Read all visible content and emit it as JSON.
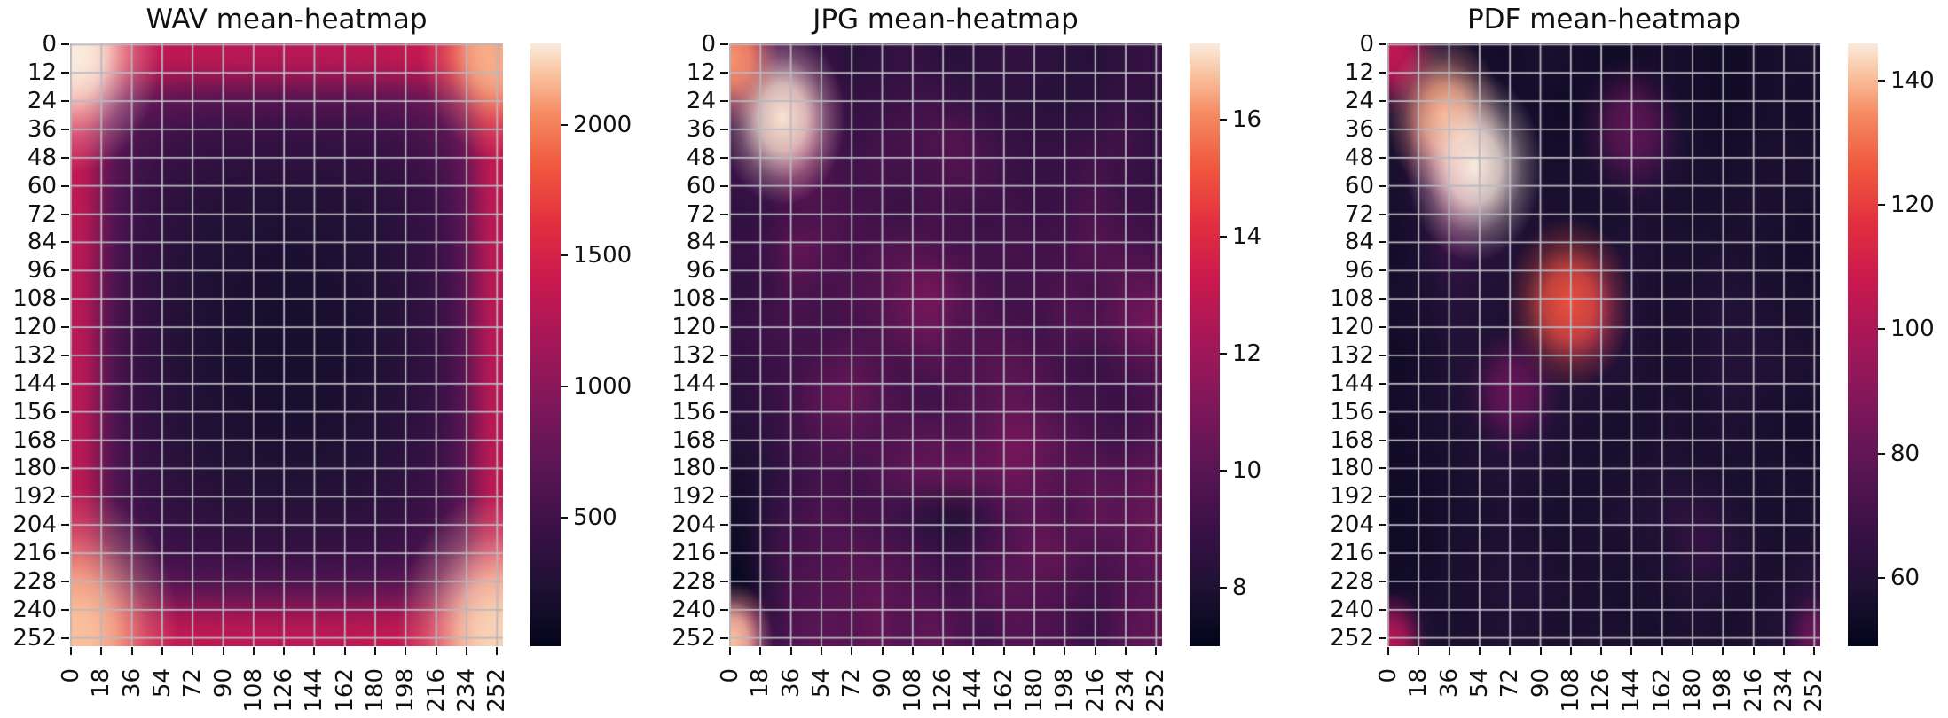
{
  "figure": {
    "background": "#ffffff",
    "text_color": "#111111",
    "grid_line_color": "#b8b8c0"
  },
  "colormap": {
    "name": "rocket",
    "stops": [
      [
        0.0,
        "#03051A"
      ],
      [
        0.1,
        "#1F1134"
      ],
      [
        0.2,
        "#3C1148"
      ],
      [
        0.3,
        "#5C1554"
      ],
      [
        0.4,
        "#7F175A"
      ],
      [
        0.5,
        "#A31759"
      ],
      [
        0.6,
        "#C7184F"
      ],
      [
        0.7,
        "#E22E3F"
      ],
      [
        0.8,
        "#F05B3E"
      ],
      [
        0.88,
        "#F58860"
      ],
      [
        0.95,
        "#F9C4A0"
      ],
      [
        1.0,
        "#FAEBDD"
      ]
    ]
  },
  "axes": {
    "domain": 256,
    "xticks": [
      0,
      18,
      36,
      54,
      72,
      90,
      108,
      126,
      144,
      162,
      180,
      198,
      216,
      234,
      252
    ],
    "yticks": [
      0,
      12,
      24,
      36,
      48,
      60,
      72,
      84,
      96,
      108,
      120,
      132,
      144,
      156,
      168,
      180,
      192,
      204,
      216,
      228,
      240,
      252
    ]
  },
  "chart_data": [
    {
      "type": "heatmap",
      "title": "WAV mean-heatmap",
      "x_range": [
        0,
        255
      ],
      "y_range": [
        0,
        255
      ],
      "vmin": 10,
      "vmax": 2310,
      "colorbar_ticks": [
        500,
        1000,
        1500,
        2000
      ],
      "legend_position": "right-colorbar",
      "grid_overlay": true,
      "grid": [
        [
          2290,
          1600,
          1380,
          1320,
          1300,
          1290,
          1280,
          1280,
          1280,
          1280,
          1290,
          1310,
          1340,
          1400,
          1620,
          2270
        ],
        [
          1600,
          980,
          780,
          710,
          680,
          660,
          650,
          645,
          645,
          650,
          660,
          685,
          730,
          830,
          1020,
          1620
        ],
        [
          1380,
          780,
          580,
          500,
          460,
          440,
          428,
          422,
          422,
          428,
          440,
          465,
          515,
          610,
          790,
          1390
        ],
        [
          1320,
          710,
          500,
          410,
          365,
          340,
          325,
          318,
          318,
          325,
          340,
          370,
          425,
          515,
          715,
          1330
        ],
        [
          1300,
          680,
          460,
          365,
          310,
          280,
          265,
          256,
          256,
          265,
          280,
          315,
          375,
          465,
          685,
          1310
        ],
        [
          1290,
          660,
          440,
          340,
          280,
          246,
          228,
          218,
          218,
          228,
          246,
          286,
          350,
          445,
          665,
          1300
        ],
        [
          1280,
          650,
          428,
          325,
          265,
          228,
          205,
          194,
          194,
          205,
          228,
          268,
          332,
          432,
          655,
          1290
        ],
        [
          1280,
          645,
          422,
          318,
          256,
          218,
          194,
          182,
          182,
          194,
          218,
          260,
          326,
          426,
          650,
          1285
        ],
        [
          1280,
          645,
          422,
          318,
          256,
          218,
          194,
          182,
          182,
          194,
          218,
          260,
          326,
          426,
          650,
          1285
        ],
        [
          1280,
          650,
          428,
          325,
          265,
          228,
          205,
          194,
          194,
          205,
          228,
          268,
          332,
          432,
          655,
          1290
        ],
        [
          1290,
          660,
          440,
          340,
          280,
          246,
          228,
          218,
          218,
          228,
          246,
          286,
          350,
          445,
          665,
          1300
        ],
        [
          1300,
          680,
          460,
          365,
          310,
          280,
          265,
          256,
          256,
          265,
          280,
          315,
          375,
          465,
          685,
          1310
        ],
        [
          1320,
          710,
          500,
          410,
          365,
          340,
          325,
          318,
          318,
          325,
          340,
          370,
          425,
          515,
          715,
          1330
        ],
        [
          1380,
          780,
          580,
          500,
          460,
          440,
          428,
          422,
          422,
          428,
          440,
          465,
          515,
          610,
          790,
          1390
        ],
        [
          1650,
          1030,
          820,
          750,
          720,
          700,
          690,
          685,
          685,
          690,
          700,
          725,
          770,
          870,
          1060,
          1670
        ],
        [
          2280,
          1650,
          1400,
          1340,
          1320,
          1310,
          1300,
          1300,
          1300,
          1300,
          1310,
          1330,
          1360,
          1420,
          1650,
          2300
        ]
      ],
      "hotspots": [
        {
          "x": 1,
          "y": 2,
          "value": 2310,
          "radius": 34
        },
        {
          "x": 253,
          "y": 2,
          "value": 2120,
          "radius": 30
        },
        {
          "x": 2,
          "y": 250,
          "value": 2180,
          "radius": 40
        },
        {
          "x": 252,
          "y": 249,
          "value": 2230,
          "radius": 38
        }
      ]
    },
    {
      "type": "heatmap",
      "title": "JPG mean-heatmap",
      "x_range": [
        0,
        255
      ],
      "y_range": [
        0,
        255
      ],
      "vmin": 7.0,
      "vmax": 17.3,
      "colorbar_ticks": [
        8,
        10,
        12,
        14,
        16
      ],
      "legend_position": "right-colorbar",
      "grid_overlay": true,
      "grid": [
        [
          13.5,
          9.8,
          9.2,
          8.8,
          8.4,
          8.6,
          8.8,
          8.6,
          8.4,
          8.5,
          8.7,
          8.6,
          8.4,
          8.3,
          8.6,
          8.8
        ],
        [
          10.0,
          9.6,
          10.2,
          9.4,
          8.8,
          8.8,
          9.0,
          9.2,
          8.8,
          8.6,
          8.5,
          8.4,
          8.3,
          8.5,
          8.8,
          8.6
        ],
        [
          8.8,
          9.4,
          11.5,
          9.8,
          9.0,
          9.2,
          9.4,
          9.6,
          9.8,
          9.2,
          8.8,
          8.7,
          8.8,
          9.0,
          9.2,
          8.8
        ],
        [
          9.0,
          9.2,
          10.5,
          9.6,
          9.2,
          9.4,
          9.2,
          9.4,
          9.6,
          9.4,
          9.0,
          8.8,
          9.0,
          9.4,
          9.0,
          8.8
        ],
        [
          8.6,
          9.0,
          9.4,
          9.6,
          9.4,
          9.2,
          9.0,
          9.4,
          9.2,
          9.0,
          9.2,
          9.0,
          9.2,
          9.6,
          9.2,
          9.0
        ],
        [
          8.8,
          9.2,
          10.3,
          9.8,
          9.4,
          9.6,
          9.8,
          9.6,
          9.4,
          9.2,
          9.4,
          9.2,
          9.4,
          9.8,
          9.6,
          9.4
        ],
        [
          8.6,
          9.0,
          9.6,
          9.4,
          9.6,
          9.8,
          10.4,
          10.8,
          10.0,
          9.4,
          9.2,
          9.4,
          9.6,
          9.4,
          10.0,
          10.2
        ],
        [
          8.8,
          9.2,
          9.4,
          9.2,
          9.4,
          9.6,
          10.2,
          10.6,
          9.8,
          9.6,
          9.4,
          9.2,
          9.8,
          9.6,
          10.2,
          10.8
        ],
        [
          8.6,
          9.0,
          9.2,
          9.6,
          10.0,
          9.6,
          9.4,
          9.8,
          9.6,
          9.8,
          10.0,
          9.6,
          9.2,
          9.0,
          9.4,
          9.8
        ],
        [
          8.4,
          8.8,
          9.4,
          10.2,
          10.4,
          9.8,
          9.4,
          9.2,
          9.6,
          9.8,
          10.2,
          9.8,
          9.4,
          9.2,
          9.0,
          9.4
        ],
        [
          8.2,
          8.6,
          9.2,
          9.6,
          9.8,
          9.6,
          9.8,
          10.0,
          9.8,
          10.2,
          10.8,
          10.4,
          9.8,
          9.4,
          9.2,
          9.6
        ],
        [
          7.8,
          8.4,
          9.0,
          9.4,
          9.2,
          9.6,
          10.0,
          10.2,
          10.4,
          10.2,
          10.6,
          10.2,
          9.8,
          10.0,
          9.8,
          10.2
        ],
        [
          7.6,
          8.6,
          9.2,
          9.6,
          9.4,
          9.2,
          9.0,
          8.4,
          8.2,
          9.0,
          9.8,
          10.0,
          9.6,
          10.2,
          10.0,
          10.4
        ],
        [
          7.5,
          8.8,
          9.4,
          9.6,
          9.8,
          9.6,
          9.4,
          9.0,
          8.8,
          9.4,
          9.8,
          10.4,
          10.0,
          9.6,
          9.8,
          10.2
        ],
        [
          7.4,
          8.6,
          9.6,
          9.8,
          10.0,
          10.2,
          9.8,
          9.6,
          9.2,
          9.8,
          10.0,
          9.8,
          9.6,
          9.2,
          9.6,
          10.0
        ],
        [
          12.0,
          9.0,
          9.8,
          10.0,
          9.9,
          10.3,
          9.8,
          10.2,
          9.6,
          9.2,
          9.8,
          9.6,
          9.4,
          9.0,
          9.8,
          10.2
        ]
      ],
      "hotspots": [
        {
          "x": 31,
          "y": 31,
          "value": 17.2,
          "radius": 24
        },
        {
          "x": 1,
          "y": 6,
          "value": 16.2,
          "radius": 18
        },
        {
          "x": 1,
          "y": 253,
          "value": 16.8,
          "radius": 16
        }
      ]
    },
    {
      "type": "heatmap",
      "title": "PDF mean-heatmap",
      "x_range": [
        0,
        255
      ],
      "y_range": [
        0,
        255
      ],
      "vmin": 49,
      "vmax": 146,
      "colorbar_ticks": [
        60,
        80,
        100,
        120,
        140
      ],
      "legend_position": "right-colorbar",
      "grid_overlay": true,
      "grid": [
        [
          88,
          62,
          58,
          56,
          55,
          57,
          56,
          55,
          54,
          55,
          56,
          55,
          54,
          55,
          56,
          57
        ],
        [
          62,
          66,
          64,
          58,
          56,
          55,
          54,
          55,
          54,
          55,
          56,
          55,
          54,
          55,
          56,
          55
        ],
        [
          58,
          78,
          88,
          62,
          57,
          56,
          55,
          56,
          57,
          66,
          60,
          56,
          55,
          56,
          57,
          56
        ],
        [
          57,
          70,
          92,
          68,
          58,
          57,
          56,
          57,
          58,
          62,
          58,
          57,
          56,
          57,
          58,
          57
        ],
        [
          56,
          62,
          78,
          64,
          59,
          58,
          57,
          56,
          57,
          58,
          57,
          56,
          57,
          58,
          57,
          56
        ],
        [
          55,
          60,
          68,
          62,
          60,
          58,
          57,
          58,
          59,
          58,
          57,
          57,
          58,
          57,
          56,
          55
        ],
        [
          56,
          58,
          62,
          60,
          59,
          58,
          60,
          72,
          62,
          58,
          57,
          58,
          59,
          58,
          57,
          56
        ],
        [
          55,
          57,
          60,
          59,
          58,
          59,
          66,
          80,
          64,
          58,
          57,
          58,
          60,
          59,
          58,
          57
        ],
        [
          54,
          56,
          59,
          60,
          62,
          60,
          59,
          62,
          60,
          58,
          57,
          58,
          61,
          60,
          59,
          58
        ],
        [
          55,
          57,
          58,
          62,
          68,
          64,
          60,
          58,
          57,
          57,
          58,
          57,
          59,
          58,
          57,
          56
        ],
        [
          54,
          56,
          57,
          59,
          62,
          60,
          58,
          57,
          56,
          57,
          58,
          57,
          58,
          57,
          56,
          55
        ],
        [
          54,
          55,
          56,
          58,
          59,
          58,
          57,
          56,
          57,
          58,
          59,
          58,
          57,
          56,
          57,
          56
        ],
        [
          53,
          55,
          56,
          57,
          58,
          57,
          56,
          57,
          58,
          59,
          62,
          64,
          60,
          57,
          56,
          57
        ],
        [
          54,
          55,
          57,
          58,
          59,
          58,
          57,
          58,
          57,
          58,
          60,
          66,
          62,
          58,
          57,
          58
        ],
        [
          55,
          56,
          57,
          58,
          60,
          59,
          58,
          57,
          56,
          57,
          58,
          60,
          58,
          57,
          58,
          62
        ],
        [
          72,
          58,
          57,
          58,
          59,
          58,
          57,
          58,
          57,
          56,
          57,
          58,
          57,
          58,
          60,
          68
        ]
      ],
      "hotspots": [
        {
          "x": 2,
          "y": 2,
          "value": 105,
          "radius": 18
        },
        {
          "x": 33,
          "y": 30,
          "value": 138,
          "radius": 22
        },
        {
          "x": 51,
          "y": 52,
          "value": 146,
          "radius": 26
        },
        {
          "x": 107,
          "y": 110,
          "value": 124,
          "radius": 24
        },
        {
          "x": 143,
          "y": 35,
          "value": 78,
          "radius": 20
        },
        {
          "x": 74,
          "y": 147,
          "value": 80,
          "radius": 18
        },
        {
          "x": 1,
          "y": 254,
          "value": 102,
          "radius": 14
        },
        {
          "x": 254,
          "y": 251,
          "value": 82,
          "radius": 12
        }
      ]
    }
  ]
}
